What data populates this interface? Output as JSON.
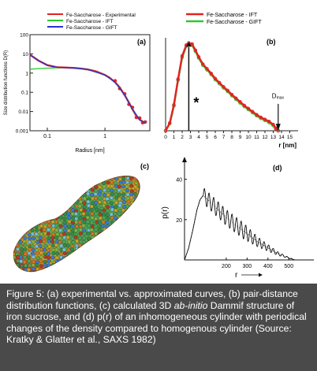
{
  "chart_data": [
    {
      "panel_label": "(a)",
      "type": "line",
      "xlabel": "Radius [nm]",
      "ylabel": "Size distribution functions D(R)",
      "x_scale": "log",
      "y_scale": "log",
      "xlim": [
        0.05,
        6
      ],
      "ylim": [
        0.001,
        100
      ],
      "x_tick_labels": [
        "0.1",
        "1"
      ],
      "y_tick_labels": [
        "0.001",
        "0.01",
        "0.1",
        "1",
        "10",
        "100"
      ],
      "legend": {
        "position": "top-left"
      },
      "series": [
        {
          "name": "Fe-Saccharose - Experimental",
          "color": "#e32222",
          "x": [
            0.05,
            0.07,
            0.1,
            0.15,
            0.2,
            0.3,
            0.4,
            0.5,
            0.6,
            0.7,
            0.8,
            1.0,
            1.2,
            1.5,
            1.8,
            2.2,
            2.6,
            3.0,
            3.5,
            4.0,
            4.5,
            5.0
          ],
          "y": [
            9,
            4.5,
            2.6,
            2.0,
            1.95,
            1.85,
            1.7,
            1.55,
            1.38,
            1.22,
            1.05,
            0.8,
            0.58,
            0.33,
            0.18,
            0.072,
            0.03,
            0.013,
            0.006,
            0.0038,
            0.003,
            0.0025
          ]
        },
        {
          "name": "Fe-Saccharose - IFT",
          "color": "#2cc92c",
          "x": [
            0.05,
            0.08,
            0.12,
            0.18,
            0.22,
            0.3,
            0.5,
            1.0,
            1.5,
            2.2,
            3.0,
            4.0,
            5.0
          ],
          "y": [
            1.6,
            1.75,
            1.85,
            1.93,
            1.95,
            1.85,
            1.55,
            0.8,
            0.33,
            0.072,
            0.013,
            0.0038,
            0.0025
          ]
        },
        {
          "name": "Fe-Saccharose - GIFT",
          "color": "#2b2fd1",
          "x": [
            0.05,
            0.07,
            0.1,
            0.15,
            0.2,
            0.3,
            0.5,
            1.0,
            1.5,
            2.2,
            3.0,
            4.0,
            5.0
          ],
          "y": [
            9,
            4.5,
            2.6,
            2.0,
            1.95,
            1.85,
            1.55,
            0.8,
            0.33,
            0.072,
            0.013,
            0.0038,
            0.0025
          ]
        }
      ]
    },
    {
      "panel_label": "(b)",
      "type": "line",
      "xlabel": "r [nm]",
      "ylabel": "",
      "xlim": [
        0,
        16
      ],
      "ylim": [
        0,
        18
      ],
      "x_tick_labels": [
        "0",
        "1",
        "2",
        "3",
        "4",
        "5",
        "6",
        "7",
        "8",
        "9",
        "10",
        "11",
        "12",
        "13",
        "14",
        "15"
      ],
      "legend": {
        "position": "top-right"
      },
      "annotations": {
        "marker": "*",
        "dmax_label": "D",
        "dmax_subscript": "max",
        "dmax_x": 13.6
      },
      "series": [
        {
          "name": "Fe-Saccharose - IFT",
          "color": "#e32222",
          "x": [
            0,
            0.5,
            1,
            1.5,
            2,
            2.5,
            2.8,
            3.2,
            3.6,
            4,
            4.5,
            5,
            5.5,
            6,
            6.5,
            7,
            7.5,
            8,
            8.5,
            9,
            9.5,
            10,
            10.5,
            11,
            11.5,
            12,
            12.5,
            13,
            13.3,
            13.6
          ],
          "y": [
            0,
            1.5,
            5,
            10,
            14.5,
            16.6,
            17,
            16.8,
            15.6,
            14.3,
            12.9,
            12.0,
            11.1,
            10.1,
            9.3,
            8.5,
            7.8,
            7.0,
            6.3,
            5.6,
            4.9,
            4.3,
            3.7,
            3.1,
            2.6,
            2.2,
            1.8,
            1.2,
            0.5,
            0
          ]
        },
        {
          "name": "Fe-Saccharose - GIFT",
          "color": "#2cc92c",
          "x": [
            0,
            0.5,
            1,
            1.5,
            2,
            2.5,
            2.8,
            3.2,
            3.6,
            4,
            4.5,
            5,
            5.5,
            6,
            6.5,
            7,
            7.5,
            8,
            8.5,
            9,
            9.5,
            10,
            10.5,
            11,
            11.5,
            12,
            12.5,
            13,
            13.3,
            13.6
          ],
          "y": [
            0,
            1.4,
            4.8,
            9.8,
            14.2,
            16.4,
            16.8,
            16.6,
            15.4,
            14.1,
            12.7,
            11.8,
            10.9,
            9.9,
            9.1,
            8.3,
            7.6,
            6.8,
            6.1,
            5.4,
            4.7,
            4.1,
            3.5,
            2.9,
            2.4,
            2.0,
            1.6,
            1.0,
            0.4,
            0
          ]
        }
      ]
    },
    {
      "panel_label": "(c)",
      "type": "other"
    },
    {
      "panel_label": "(d)",
      "type": "line",
      "xlabel": "r",
      "ylabel": "p(r)",
      "xlim": [
        0,
        620
      ],
      "ylim": [
        0,
        50
      ],
      "x_tick_labels": [
        "200",
        "300",
        "400",
        "500"
      ],
      "y_tick_labels": [
        "20",
        "40"
      ],
      "series": [
        {
          "name": "",
          "color": "#111111",
          "style": "solid",
          "x": [
            0,
            20,
            40,
            60,
            75,
            90,
            120,
            160,
            200,
            250,
            300,
            350,
            400,
            450,
            500,
            530
          ],
          "y": [
            0,
            6,
            15,
            25,
            30,
            32,
            29,
            25,
            21,
            17,
            13,
            9,
            6,
            3,
            1,
            0
          ]
        },
        {
          "name": "",
          "color": "#555555",
          "style": "dotted",
          "x": [
            0,
            20,
            40,
            60,
            75,
            90,
            120,
            160,
            200,
            250,
            300,
            350,
            400,
            450,
            500,
            530
          ],
          "y": [
            0,
            6,
            15,
            25,
            30,
            32,
            29,
            25,
            21,
            17,
            13,
            9,
            6,
            3,
            1,
            0
          ]
        }
      ]
    }
  ],
  "caption": {
    "part1": "Figure 5: (a) experimental vs. approximated curves, (b) pair-distance distribution functions, (c) calculated 3D ",
    "italic": "ab-initio",
    "part2": " Dammif structure of iron sucrose, and (d) p(r) of an inhomogeneous cylinder with periodical changes of the density compared to homogenous cylinder (Source: Kratky & Glatter et al., SAXS 1982)"
  },
  "colors": {
    "caption_bg": "#4a4a4a",
    "red": "#e32222",
    "green": "#2cc92c",
    "blue": "#2b2fd1"
  }
}
